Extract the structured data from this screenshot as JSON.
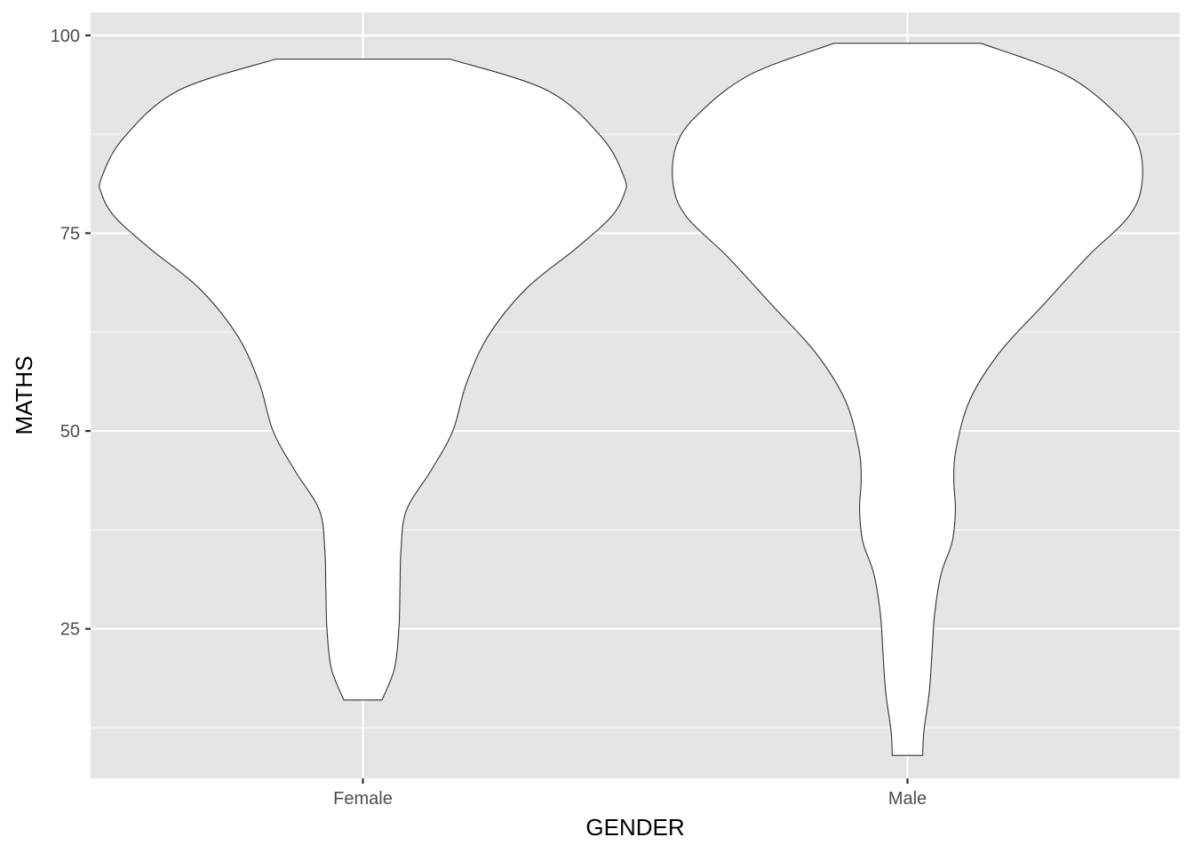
{
  "chart_data": {
    "type": "violin",
    "title": "",
    "xlabel": "GENDER",
    "ylabel": "MATHS",
    "categories": [
      "Female",
      "Male"
    ],
    "ylim": [
      6.1,
      102.9
    ],
    "y_ticks": [
      25,
      50,
      75,
      100
    ],
    "y_tick_labels": [
      "25",
      "50",
      "75",
      "100"
    ],
    "grid": true,
    "legend": "none",
    "colors": {
      "panel": "#e5e5e5",
      "grid": "#ffffff",
      "fill": "#ffffff",
      "outline": "#333333"
    },
    "series": [
      {
        "category": "Female",
        "min": 16,
        "max": 97,
        "profile": [
          [
            97,
            0.16
          ],
          [
            93,
            0.34
          ],
          [
            87,
            0.44
          ],
          [
            82,
            0.48
          ],
          [
            80,
            0.48
          ],
          [
            77,
            0.455
          ],
          [
            73,
            0.39
          ],
          [
            68,
            0.3
          ],
          [
            62,
            0.23
          ],
          [
            56,
            0.19
          ],
          [
            50,
            0.165
          ],
          [
            45,
            0.125
          ],
          [
            40,
            0.08
          ],
          [
            35,
            0.07
          ],
          [
            30,
            0.068
          ],
          [
            25,
            0.066
          ],
          [
            20,
            0.058
          ],
          [
            16,
            0.035
          ]
        ]
      },
      {
        "category": "Male",
        "min": 9,
        "max": 99,
        "profile": [
          [
            99,
            0.135
          ],
          [
            95,
            0.29
          ],
          [
            90,
            0.385
          ],
          [
            86,
            0.425
          ],
          [
            81,
            0.43
          ],
          [
            77,
            0.405
          ],
          [
            72,
            0.33
          ],
          [
            66,
            0.25
          ],
          [
            60,
            0.17
          ],
          [
            54,
            0.115
          ],
          [
            48,
            0.09
          ],
          [
            44,
            0.085
          ],
          [
            40,
            0.088
          ],
          [
            36,
            0.082
          ],
          [
            32,
            0.062
          ],
          [
            27,
            0.05
          ],
          [
            22,
            0.045
          ],
          [
            17,
            0.04
          ],
          [
            12,
            0.03
          ],
          [
            9,
            0.028
          ]
        ]
      }
    ]
  }
}
